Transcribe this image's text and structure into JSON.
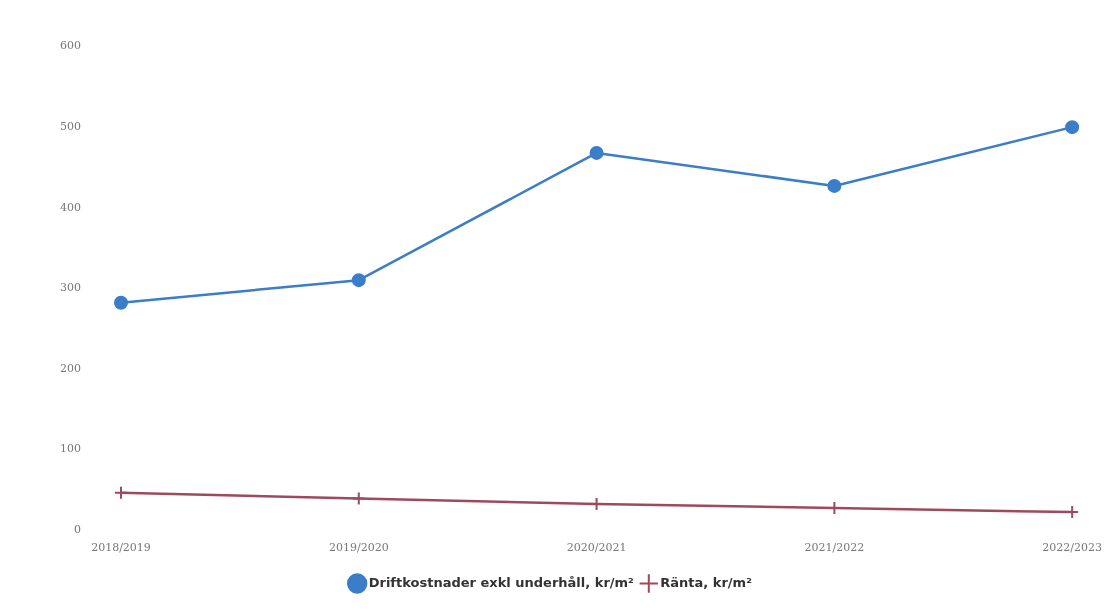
{
  "chart_data": {
    "type": "line",
    "categories": [
      "2018/2019",
      "2019/2020",
      "2020/2021",
      "2021/2022",
      "2022/2023"
    ],
    "series": [
      {
        "name": "Driftkostnader exkl underhåll, kr/m²",
        "color": "#3b7dc8",
        "values": [
          282,
          310,
          468,
          427,
          500
        ],
        "marker": "circle"
      },
      {
        "name": "Ränta, kr/m²",
        "color": "#9e4a5c",
        "values": [
          46,
          39,
          32,
          27,
          22
        ],
        "marker": "cross"
      }
    ],
    "ylim": [
      0,
      600
    ],
    "yticks": [
      0,
      100,
      200,
      300,
      400,
      500,
      600
    ],
    "grid": false,
    "legend": "bottom"
  }
}
